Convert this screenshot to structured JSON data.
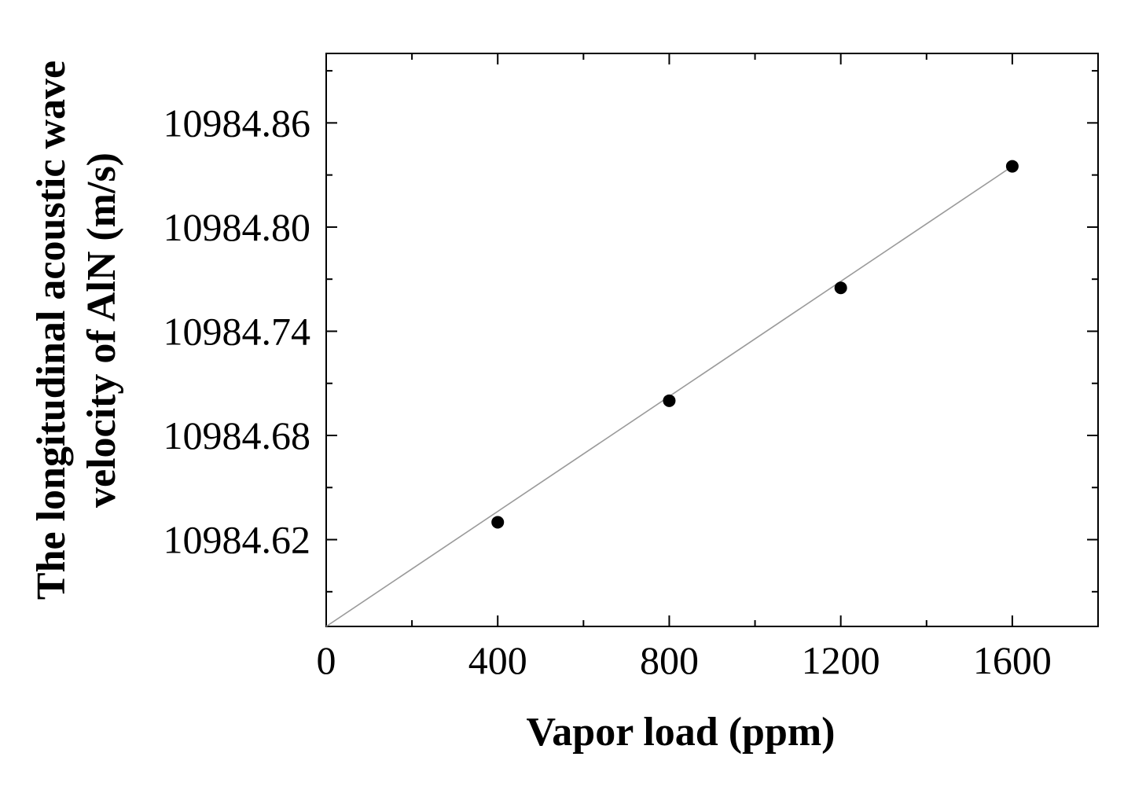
{
  "chart_data": {
    "type": "scatter",
    "title": "",
    "xlabel": "Vapor load (ppm)",
    "ylabel_line1": "The longitudinal acoustic wave",
    "ylabel_line2": "velocity of AlN (m/s)",
    "xlim": [
      0,
      1800
    ],
    "ylim": [
      10984.57,
      10984.9
    ],
    "x_ticks": [
      0,
      400,
      800,
      1200,
      1600
    ],
    "y_ticks": [
      10984.62,
      10984.68,
      10984.74,
      10984.8,
      10984.86
    ],
    "x_tick_labels": [
      "0",
      "400",
      "800",
      "1200",
      "1600"
    ],
    "y_tick_labels": [
      "10984.62",
      "10984.68",
      "10984.74",
      "10984.80",
      "10984.86"
    ],
    "x_minor_step": 200,
    "y_minor_step": 0.03,
    "series": [
      {
        "points": [
          {
            "x": 400,
            "y": 10984.63
          },
          {
            "x": 800,
            "y": 10984.7
          },
          {
            "x": 1200,
            "y": 10984.765
          },
          {
            "x": 1600,
            "y": 10984.835
          }
        ]
      }
    ],
    "fit_line": {
      "x": [
        0,
        1600
      ],
      "y": [
        10984.57,
        10984.835
      ]
    },
    "grid": false,
    "legend": "none",
    "colors": {
      "marker": "#000000",
      "line": "#9a9a9a",
      "axis": "#000000"
    }
  }
}
